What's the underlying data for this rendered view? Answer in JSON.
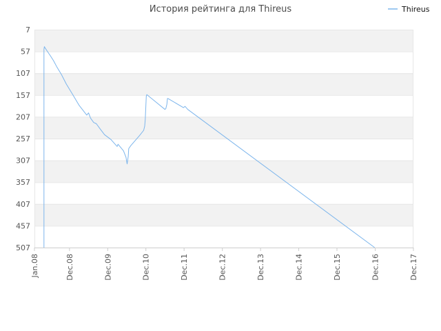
{
  "chart_data": {
    "type": "line",
    "title": "История рейтинга для Thireus",
    "xlabel": "",
    "ylabel": "",
    "legend": {
      "placement": "top-right"
    },
    "grid": true,
    "colors": {
      "series": "#7cb5ec",
      "band": "#f2f2f2",
      "grid": "#e6e6e6",
      "axis": "#cccccc"
    },
    "y_axis": {
      "reversed": true,
      "ylim": [
        7,
        507
      ],
      "ticks": [
        7,
        57,
        107,
        157,
        207,
        257,
        307,
        357,
        407,
        457,
        507
      ]
    },
    "x_axis": {
      "ticks": [
        "Jan.08",
        "Dec.08",
        "Dec.09",
        "Dec.10",
        "Dec.11",
        "Dec.12",
        "Dec.13",
        "Dec.14",
        "Dec.15",
        "Dec.16",
        "Dec.17"
      ],
      "tick_dates": [
        "2008-01-01",
        "2008-12-01",
        "2009-12-01",
        "2010-12-01",
        "2011-12-01",
        "2012-12-01",
        "2013-12-01",
        "2014-12-01",
        "2015-12-01",
        "2016-12-01",
        "2017-12-01"
      ]
    },
    "series": [
      {
        "name": "Thireus",
        "points": [
          [
            "2008-04-01",
            507
          ],
          [
            "2008-04-01",
            52
          ],
          [
            "2008-04-05",
            46
          ],
          [
            "2008-04-15",
            50
          ],
          [
            "2008-05-01",
            56
          ],
          [
            "2008-06-01",
            67
          ],
          [
            "2008-07-01",
            78
          ],
          [
            "2008-08-01",
            92
          ],
          [
            "2008-09-15",
            110
          ],
          [
            "2008-11-01",
            132
          ],
          [
            "2009-01-01",
            156
          ],
          [
            "2009-03-01",
            180
          ],
          [
            "2009-05-15",
            203
          ],
          [
            "2009-06-01",
            198
          ],
          [
            "2009-06-20",
            210
          ],
          [
            "2009-07-20",
            220
          ],
          [
            "2009-08-15",
            223
          ],
          [
            "2009-09-20",
            235
          ],
          [
            "2009-11-01",
            248
          ],
          [
            "2010-01-01",
            259
          ],
          [
            "2010-03-01",
            275
          ],
          [
            "2010-03-10",
            270
          ],
          [
            "2010-05-01",
            285
          ],
          [
            "2010-05-25",
            300
          ],
          [
            "2010-06-01",
            310
          ],
          [
            "2010-06-05",
            315
          ],
          [
            "2010-06-15",
            298
          ],
          [
            "2010-06-20",
            280
          ],
          [
            "2010-07-10",
            273
          ],
          [
            "2010-10-01",
            250
          ],
          [
            "2010-11-10",
            238
          ],
          [
            "2010-11-20",
            228
          ],
          [
            "2010-11-25",
            213
          ],
          [
            "2010-12-05",
            160
          ],
          [
            "2010-12-10",
            156
          ],
          [
            "2011-03-01",
            172
          ],
          [
            "2011-06-01",
            190
          ],
          [
            "2011-06-10",
            188
          ],
          [
            "2011-06-20",
            178
          ],
          [
            "2011-06-25",
            165
          ],
          [
            "2011-07-01",
            165
          ],
          [
            "2011-11-25",
            186
          ],
          [
            "2011-12-10",
            183
          ],
          [
            "2012-01-05",
            190
          ],
          [
            "2016-11-25",
            507
          ]
        ]
      }
    ]
  }
}
